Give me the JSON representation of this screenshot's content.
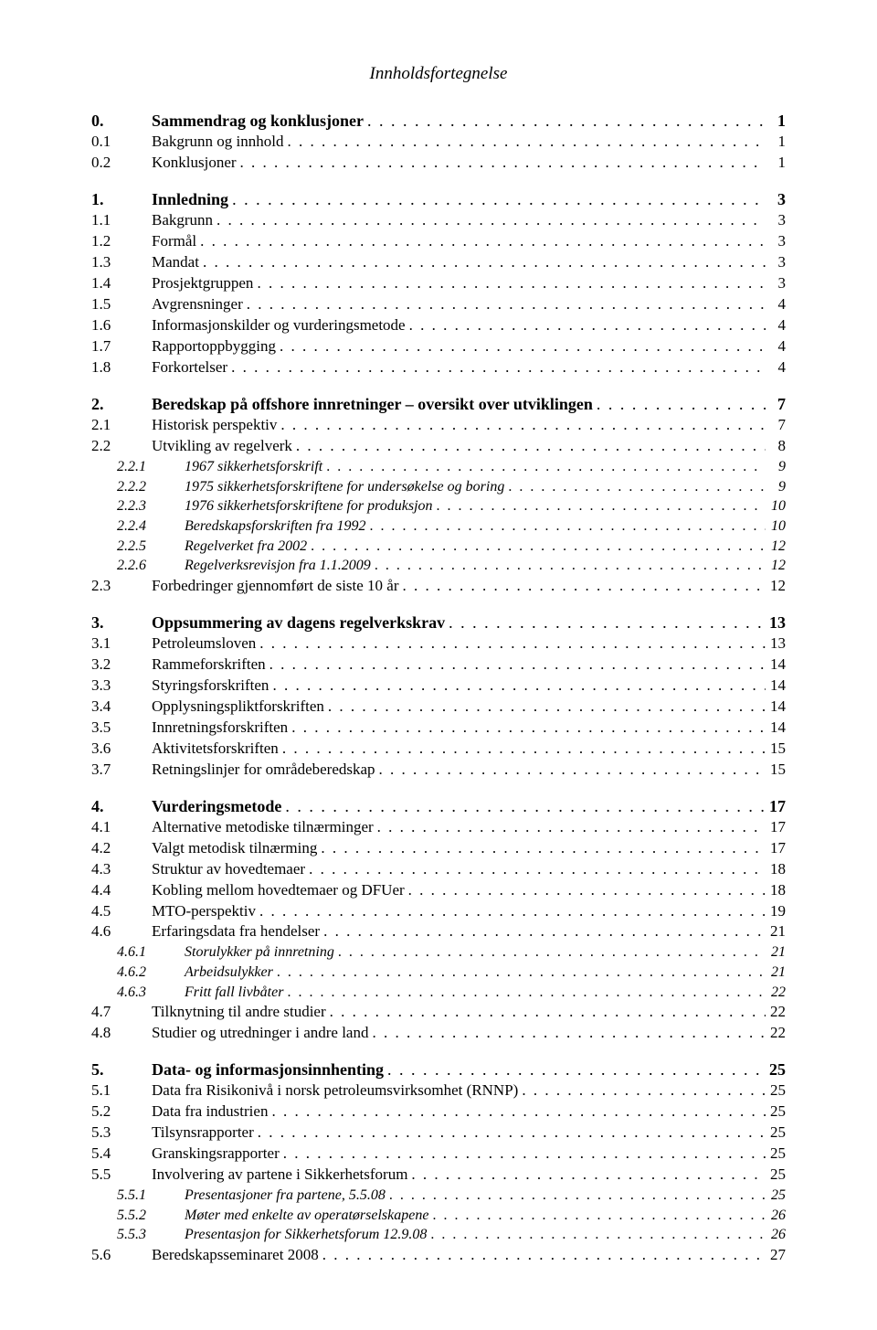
{
  "title": "Innholdsfortegnelse",
  "toc": [
    {
      "level": 1,
      "num": "0.",
      "label": "Sammendrag og konklusjoner",
      "page": "1"
    },
    {
      "level": 2,
      "num": "0.1",
      "label": "Bakgrunn og innhold",
      "page": "1"
    },
    {
      "level": 2,
      "num": "0.2",
      "label": "Konklusjoner",
      "page": "1"
    },
    {
      "level": 1,
      "num": "1.",
      "label": "Innledning",
      "page": "3"
    },
    {
      "level": 2,
      "num": "1.1",
      "label": "Bakgrunn",
      "page": "3"
    },
    {
      "level": 2,
      "num": "1.2",
      "label": "Formål",
      "page": "3"
    },
    {
      "level": 2,
      "num": "1.3",
      "label": "Mandat",
      "page": "3"
    },
    {
      "level": 2,
      "num": "1.4",
      "label": "Prosjektgruppen",
      "page": "3"
    },
    {
      "level": 2,
      "num": "1.5",
      "label": "Avgrensninger",
      "page": "4"
    },
    {
      "level": 2,
      "num": "1.6",
      "label": "Informasjonskilder og vurderingsmetode",
      "page": "4"
    },
    {
      "level": 2,
      "num": "1.7",
      "label": "Rapportoppbygging",
      "page": "4"
    },
    {
      "level": 2,
      "num": "1.8",
      "label": "Forkortelser",
      "page": "4"
    },
    {
      "level": 1,
      "num": "2.",
      "label": "Beredskap på offshore innretninger – oversikt over utviklingen",
      "page": "7"
    },
    {
      "level": 2,
      "num": "2.1",
      "label": "Historisk perspektiv",
      "page": "7"
    },
    {
      "level": 2,
      "num": "2.2",
      "label": "Utvikling av regelverk",
      "page": "8"
    },
    {
      "level": 3,
      "num": "2.2.1",
      "label": "1967 sikkerhetsforskrift",
      "page": "9"
    },
    {
      "level": 3,
      "num": "2.2.2",
      "label": "1975 sikkerhetsforskriftene for undersøkelse og boring",
      "page": "9"
    },
    {
      "level": 3,
      "num": "2.2.3",
      "label": "1976 sikkerhetsforskriftene for produksjon",
      "page": "10"
    },
    {
      "level": 3,
      "num": "2.2.4",
      "label": "Beredskapsforskriften fra 1992",
      "page": "10"
    },
    {
      "level": 3,
      "num": "2.2.5",
      "label": "Regelverket fra 2002",
      "page": "12"
    },
    {
      "level": 3,
      "num": "2.2.6",
      "label": "Regelverksrevisjon fra 1.1.2009",
      "page": "12"
    },
    {
      "level": 2,
      "num": "2.3",
      "label": "Forbedringer gjennomført de siste 10 år",
      "page": "12"
    },
    {
      "level": 1,
      "num": "3.",
      "label": "Oppsummering av dagens regelverkskrav",
      "page": "13"
    },
    {
      "level": 2,
      "num": "3.1",
      "label": "Petroleumsloven",
      "page": "13"
    },
    {
      "level": 2,
      "num": "3.2",
      "label": "Rammeforskriften",
      "page": "14"
    },
    {
      "level": 2,
      "num": "3.3",
      "label": "Styringsforskriften",
      "page": "14"
    },
    {
      "level": 2,
      "num": "3.4",
      "label": "Opplysningspliktforskriften",
      "page": "14"
    },
    {
      "level": 2,
      "num": "3.5",
      "label": "Innretningsforskriften",
      "page": "14"
    },
    {
      "level": 2,
      "num": "3.6",
      "label": "Aktivitetsforskriften",
      "page": "15"
    },
    {
      "level": 2,
      "num": "3.7",
      "label": "Retningslinjer for områdeberedskap",
      "page": "15"
    },
    {
      "level": 1,
      "num": "4.",
      "label": "Vurderingsmetode",
      "page": "17"
    },
    {
      "level": 2,
      "num": "4.1",
      "label": "Alternative metodiske tilnærminger",
      "page": "17"
    },
    {
      "level": 2,
      "num": "4.2",
      "label": "Valgt metodisk tilnærming",
      "page": "17"
    },
    {
      "level": 2,
      "num": "4.3",
      "label": "Struktur av hovedtemaer",
      "page": "18"
    },
    {
      "level": 2,
      "num": "4.4",
      "label": "Kobling mellom hovedtemaer og DFUer",
      "page": "18"
    },
    {
      "level": 2,
      "num": "4.5",
      "label": "MTO-perspektiv",
      "page": "19"
    },
    {
      "level": 2,
      "num": "4.6",
      "label": "Erfaringsdata fra hendelser",
      "page": "21"
    },
    {
      "level": 3,
      "num": "4.6.1",
      "label": "Storulykker på innretning",
      "page": "21"
    },
    {
      "level": 3,
      "num": "4.6.2",
      "label": "Arbeidsulykker",
      "page": "21"
    },
    {
      "level": 3,
      "num": "4.6.3",
      "label": "Fritt fall livbåter",
      "page": "22"
    },
    {
      "level": 2,
      "num": "4.7",
      "label": "Tilknytning til andre studier",
      "page": "22"
    },
    {
      "level": 2,
      "num": "4.8",
      "label": "Studier og utredninger i andre land",
      "page": "22"
    },
    {
      "level": 1,
      "num": "5.",
      "label": "Data- og informasjonsinnhenting",
      "page": "25"
    },
    {
      "level": 2,
      "num": "5.1",
      "label": "Data fra Risikonivå i norsk petroleumsvirksomhet (RNNP)",
      "page": "25"
    },
    {
      "level": 2,
      "num": "5.2",
      "label": "Data fra industrien",
      "page": "25"
    },
    {
      "level": 2,
      "num": "5.3",
      "label": "Tilsynsrapporter",
      "page": "25"
    },
    {
      "level": 2,
      "num": "5.4",
      "label": "Granskingsrapporter",
      "page": "25"
    },
    {
      "level": 2,
      "num": "5.5",
      "label": "Involvering av partene i Sikkerhetsforum",
      "page": "25"
    },
    {
      "level": 3,
      "num": "5.5.1",
      "label": "Presentasjoner fra partene, 5.5.08",
      "page": "25"
    },
    {
      "level": 3,
      "num": "5.5.2",
      "label": "Møter med enkelte av operatørselskapene",
      "page": "26"
    },
    {
      "level": 3,
      "num": "5.5.3",
      "label": "Presentasjon for Sikkerhetsforum 12.9.08",
      "page": "26"
    },
    {
      "level": 2,
      "num": "5.6",
      "label": "Beredskapsseminaret 2008",
      "page": "27"
    }
  ]
}
